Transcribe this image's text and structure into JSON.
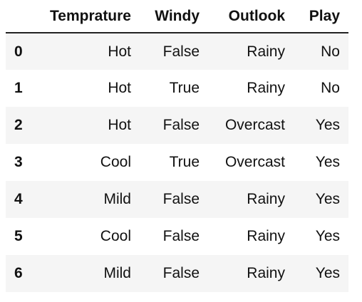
{
  "table": {
    "columns": [
      "Temprature",
      "Windy",
      "Outlook",
      "Play"
    ],
    "rows": [
      {
        "index": "0",
        "cells": [
          "Hot",
          "False",
          "Rainy",
          "No"
        ]
      },
      {
        "index": "1",
        "cells": [
          "Hot",
          "True",
          "Rainy",
          "No"
        ]
      },
      {
        "index": "2",
        "cells": [
          "Hot",
          "False",
          "Overcast",
          "Yes"
        ]
      },
      {
        "index": "3",
        "cells": [
          "Cool",
          "True",
          "Overcast",
          "Yes"
        ]
      },
      {
        "index": "4",
        "cells": [
          "Mild",
          "False",
          "Rainy",
          "Yes"
        ]
      },
      {
        "index": "5",
        "cells": [
          "Cool",
          "False",
          "Rainy",
          "Yes"
        ]
      },
      {
        "index": "6",
        "cells": [
          "Mild",
          "False",
          "Rainy",
          "Yes"
        ]
      }
    ]
  },
  "colors": {
    "stripe": "#f5f5f5",
    "header_rule": "#222222",
    "text": "#111111"
  }
}
